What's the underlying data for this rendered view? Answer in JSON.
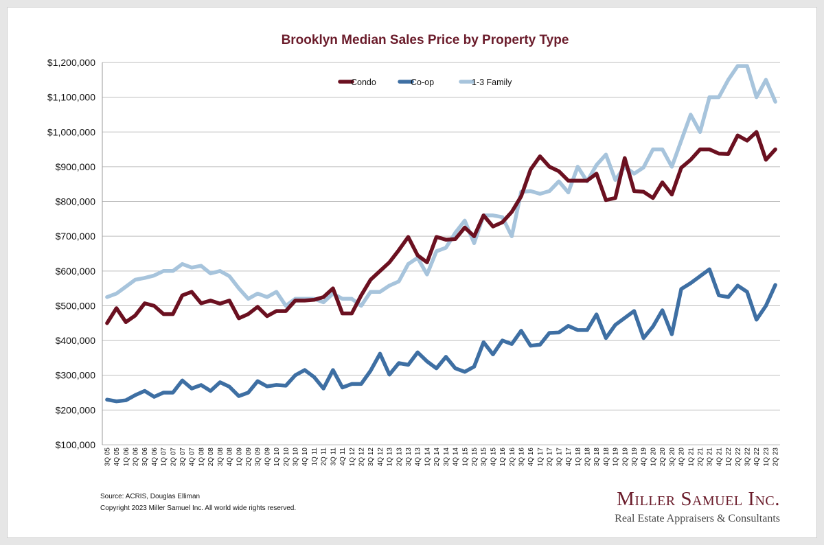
{
  "colors": {
    "condo": "#6b1020",
    "coop": "#3e6fa3",
    "family": "#a7c4dc",
    "title": "#6a1b2a"
  },
  "footer": {
    "source": "Source: ACRIS, Douglas Elliman",
    "copyright": "Copyright 2023 Miller Samuel Inc.  All world wide rights reserved."
  },
  "logo": {
    "name": "Miller Samuel Inc.",
    "tagline": "Real Estate Appraisers & Consultants"
  },
  "chart_data": {
    "type": "line",
    "title": "Brooklyn Median Sales Price by Property Type",
    "xlabel": "",
    "ylabel": "",
    "ylim": [
      100000,
      1200000
    ],
    "yticks": [
      100000,
      200000,
      300000,
      400000,
      500000,
      600000,
      700000,
      800000,
      900000,
      1000000,
      1100000,
      1200000
    ],
    "ytick_labels": [
      "$100,000",
      "$200,000",
      "$300,000",
      "$400,000",
      "$500,000",
      "$600,000",
      "$700,000",
      "$800,000",
      "$900,000",
      "$1,000,000",
      "$1,100,000",
      "$1,200,000"
    ],
    "grid": true,
    "legend_position": "top-center",
    "x": [
      "3Q 05",
      "4Q 05",
      "1Q 06",
      "2Q 06",
      "3Q 06",
      "4Q 06",
      "1Q 07",
      "2Q 07",
      "3Q 07",
      "4Q 07",
      "1Q 08",
      "2Q 08",
      "3Q 08",
      "4Q 08",
      "1Q 09",
      "2Q 09",
      "3Q 09",
      "4Q 09",
      "1Q 10",
      "2Q 10",
      "3Q 10",
      "4Q 10",
      "1Q 11",
      "2Q 11",
      "3Q 11",
      "4Q 11",
      "1Q 12",
      "2Q 12",
      "3Q 12",
      "4Q 12",
      "1Q 13",
      "2Q 13",
      "3Q 13",
      "4Q 13",
      "1Q 14",
      "2Q 14",
      "3Q 14",
      "4Q 14",
      "1Q 15",
      "2Q 15",
      "3Q 15",
      "4Q 15",
      "1Q 16",
      "2Q 16",
      "3Q 16",
      "4Q 16",
      "1Q 17",
      "2Q 17",
      "3Q 17",
      "4Q 17",
      "1Q 18",
      "2Q 18",
      "3Q 18",
      "4Q 18",
      "1Q 19",
      "2Q 19",
      "3Q 19",
      "4Q 19",
      "1Q 20",
      "2Q 20",
      "3Q 20",
      "4Q 20",
      "1Q 21",
      "2Q 21",
      "3Q 21",
      "4Q 21",
      "1Q 22",
      "2Q 22",
      "3Q 22",
      "4Q 22",
      "1Q 23",
      "2Q 23"
    ],
    "series": [
      {
        "name": "Condo",
        "values": [
          450000,
          493000,
          453000,
          472000,
          507000,
          500000,
          476000,
          476000,
          530000,
          540000,
          507000,
          515000,
          506000,
          515000,
          464000,
          476000,
          497000,
          470000,
          485000,
          485000,
          515000,
          515000,
          517000,
          525000,
          550000,
          478000,
          478000,
          530000,
          575000,
          600000,
          625000,
          660000,
          698000,
          645000,
          625000,
          698000,
          690000,
          692000,
          725000,
          700000,
          760000,
          728000,
          740000,
          770000,
          815000,
          892000,
          930000,
          900000,
          887000,
          860000,
          860000,
          860000,
          880000,
          804000,
          810000,
          925000,
          830000,
          828000,
          810000,
          855000,
          820000,
          897000,
          920000,
          950000,
          950000,
          938000,
          937000,
          990000,
          975000,
          1000000,
          920000,
          950000
        ]
      },
      {
        "name": "Co-op",
        "values": [
          230000,
          225000,
          228000,
          243000,
          255000,
          238000,
          250000,
          250000,
          285000,
          262000,
          272000,
          255000,
          280000,
          267000,
          240000,
          250000,
          283000,
          268000,
          272000,
          270000,
          300000,
          315000,
          295000,
          262000,
          315000,
          265000,
          275000,
          275000,
          313000,
          362000,
          302000,
          335000,
          330000,
          366000,
          340000,
          320000,
          353000,
          320000,
          310000,
          325000,
          395000,
          360000,
          400000,
          390000,
          428000,
          385000,
          388000,
          422000,
          423000,
          442000,
          430000,
          430000,
          475000,
          407000,
          445000,
          465000,
          485000,
          407000,
          440000,
          487000,
          418000,
          548000,
          565000,
          585000,
          605000,
          530000,
          525000,
          558000,
          540000,
          460000,
          500000,
          560000
        ]
      },
      {
        "name": "1-3 Family",
        "values": [
          525000,
          535000,
          555000,
          575000,
          580000,
          587000,
          600000,
          600000,
          620000,
          610000,
          615000,
          593000,
          600000,
          585000,
          550000,
          520000,
          535000,
          525000,
          540000,
          500000,
          520000,
          520000,
          520000,
          510000,
          535000,
          520000,
          520000,
          500000,
          540000,
          540000,
          558000,
          570000,
          620000,
          638000,
          590000,
          657000,
          667000,
          710000,
          745000,
          680000,
          760000,
          760000,
          755000,
          700000,
          828000,
          830000,
          822000,
          830000,
          858000,
          826000,
          900000,
          858000,
          905000,
          935000,
          862000,
          900000,
          880000,
          898000,
          950000,
          950000,
          900000,
          975000,
          1050000,
          1000000,
          1100000,
          1100000,
          1150000,
          1190000,
          1190000,
          1100000,
          1150000,
          1087000
        ]
      }
    ]
  }
}
